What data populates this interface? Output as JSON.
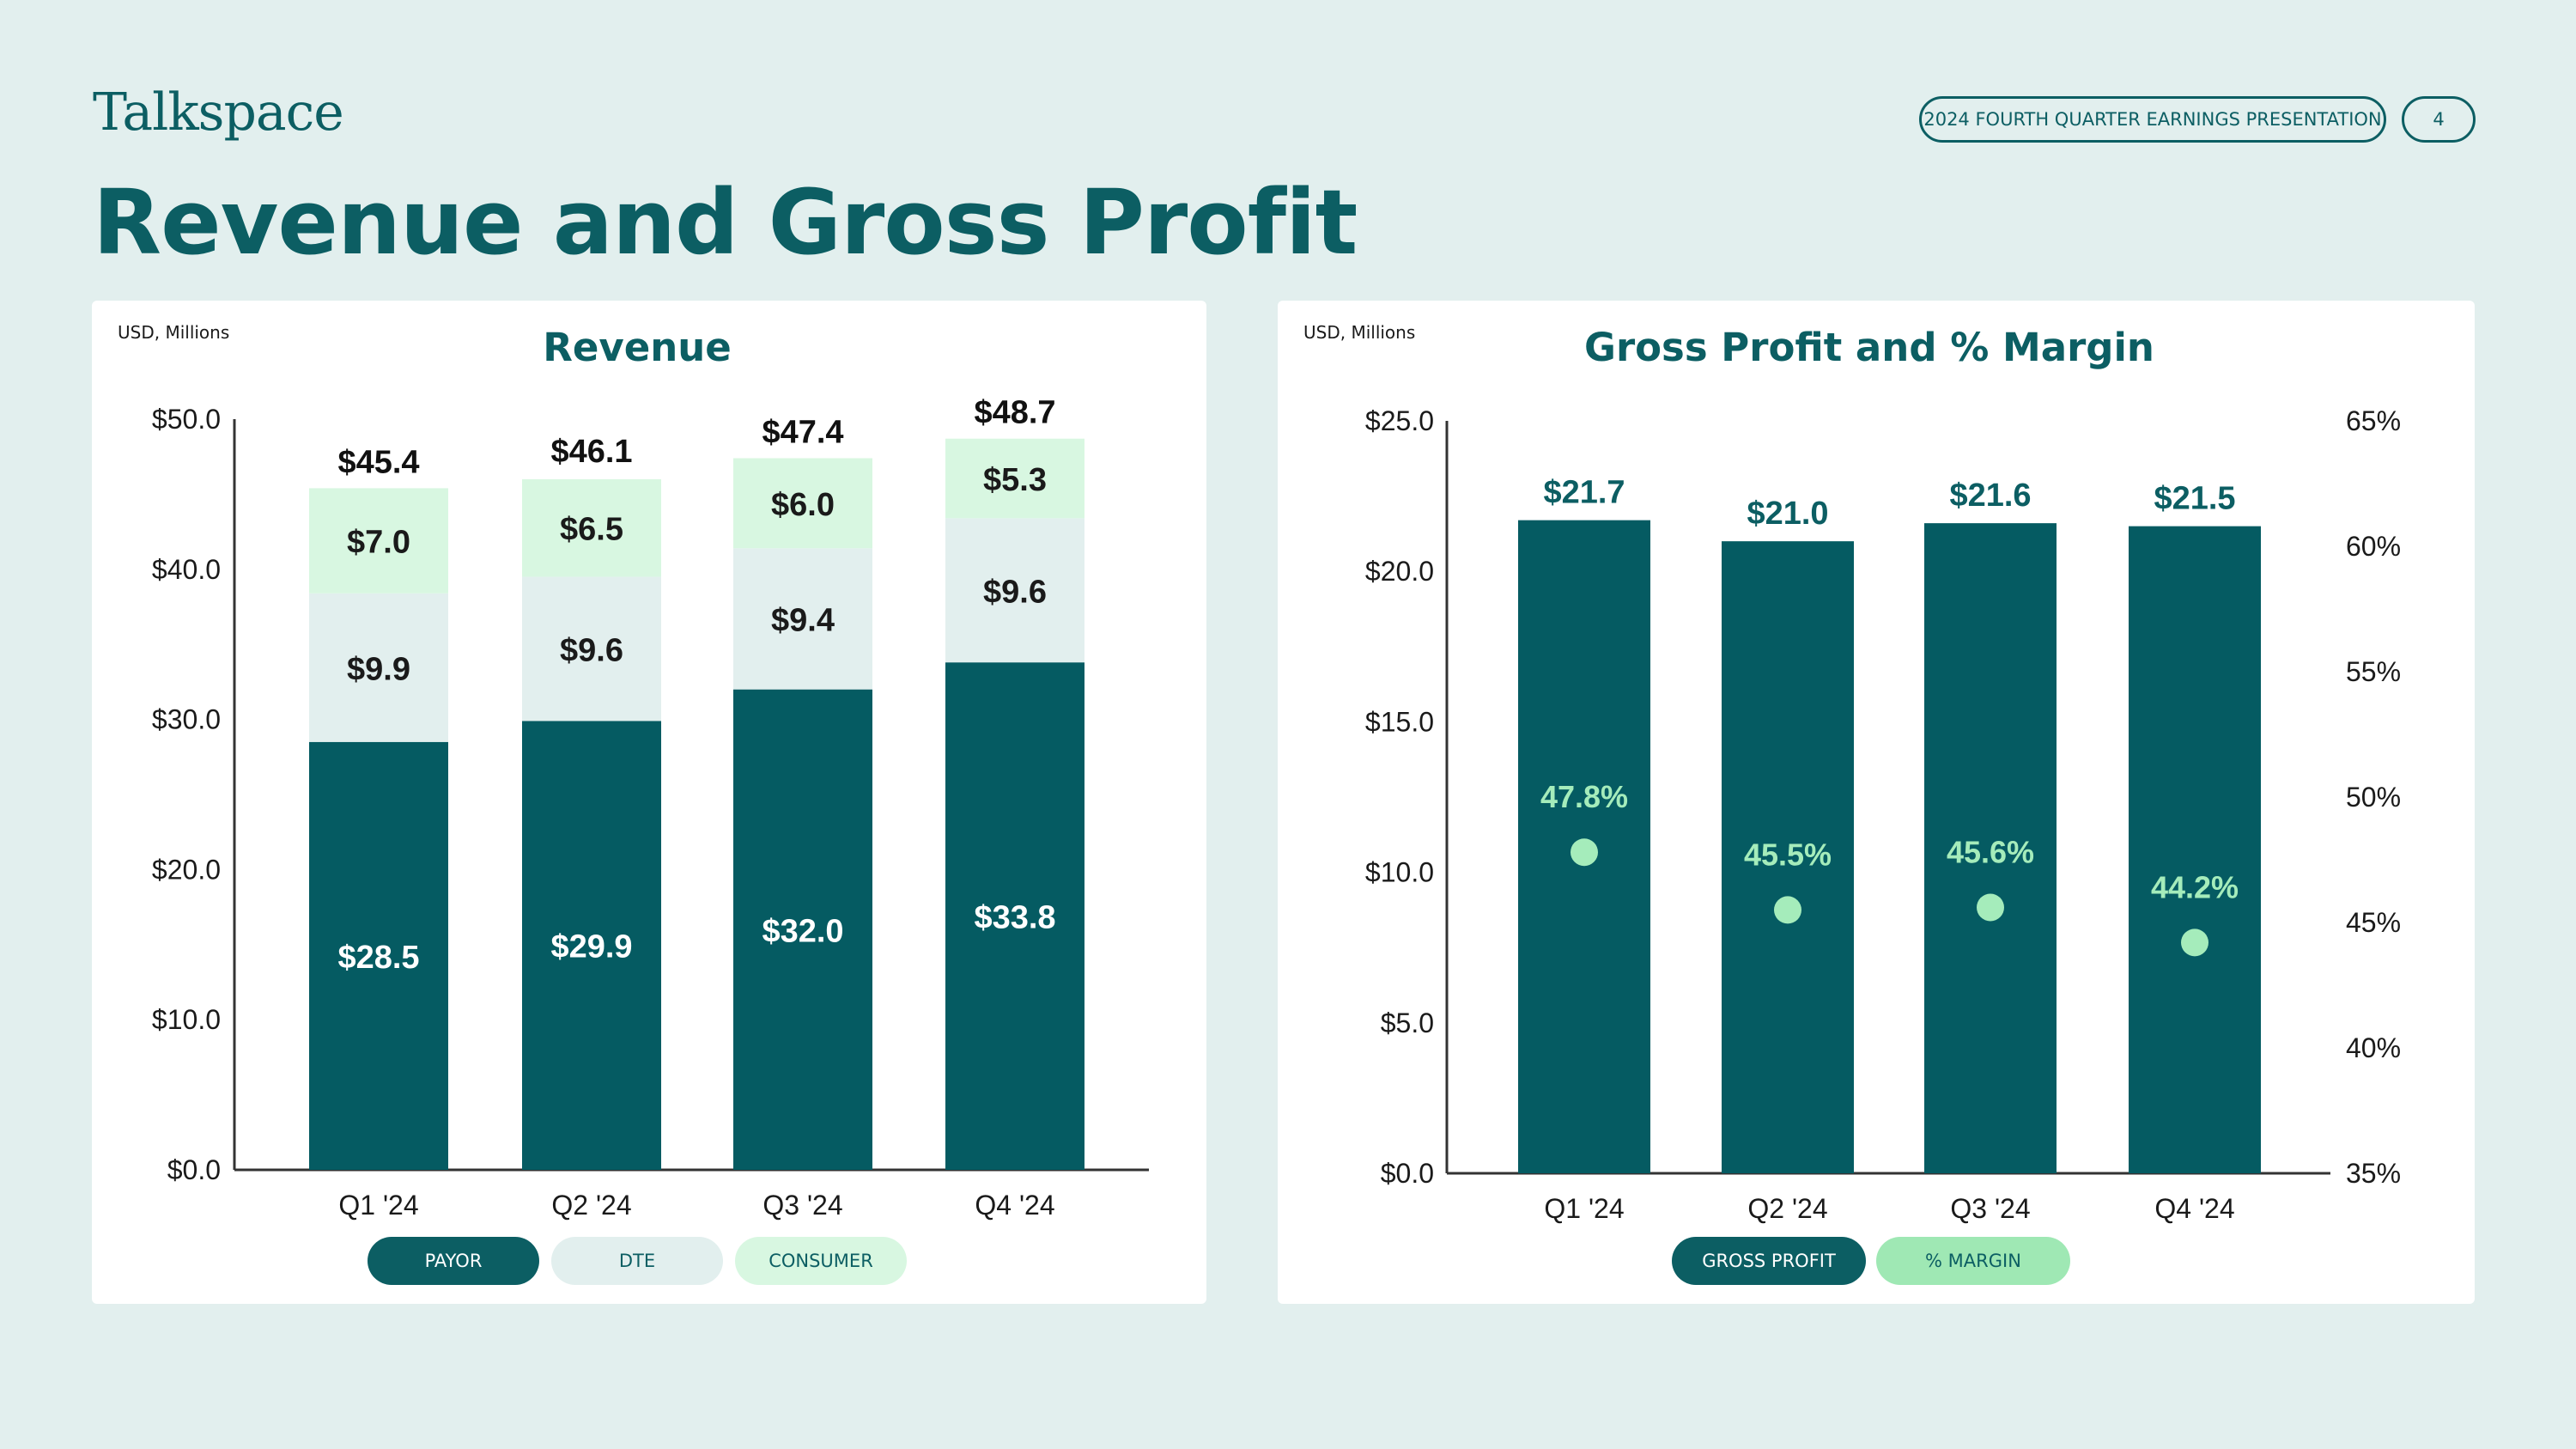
{
  "header": {
    "logo_text": "Talkspace",
    "title": "Revenue and Gross Profit",
    "presentation_label": "2024 FOURTH QUARTER EARNINGS PRESENTATION",
    "page_number": "4"
  },
  "colors": {
    "brand_teal": "#0c5e63",
    "payor": "#055b62",
    "dte": "#e2efee",
    "consumer": "#d8f7e1",
    "margin_dot": "#a5ecbb",
    "margin_text": "#a5ecbb",
    "background": "#e2efee"
  },
  "chart_data": [
    {
      "type": "bar",
      "stacked": true,
      "title": "Revenue",
      "unit_label": "USD, Millions",
      "categories": [
        "Q1 '24",
        "Q2 '24",
        "Q3 '24",
        "Q4 '24"
      ],
      "series": [
        {
          "name": "PAYOR",
          "values": [
            28.5,
            29.9,
            32.0,
            33.8
          ],
          "labels": [
            "$28.5",
            "$29.9",
            "$32.0",
            "$33.8"
          ]
        },
        {
          "name": "DTE",
          "values": [
            9.9,
            9.6,
            9.4,
            9.6
          ],
          "labels": [
            "$9.9",
            "$9.6",
            "$9.4",
            "$9.6"
          ]
        },
        {
          "name": "CONSUMER",
          "values": [
            7.0,
            6.5,
            6.0,
            5.3
          ],
          "labels": [
            "$7.0",
            "$6.5",
            "$6.0",
            "$5.3"
          ]
        }
      ],
      "totals": [
        45.4,
        46.1,
        47.4,
        48.7
      ],
      "total_labels": [
        "$45.4",
        "$46.1",
        "$47.4",
        "$48.7"
      ],
      "ylim": [
        0,
        50
      ],
      "yticks": [
        0,
        10,
        20,
        30,
        40,
        50
      ],
      "ytick_labels": [
        "$0.0",
        "$10.0",
        "$20.0",
        "$30.0",
        "$40.0",
        "$50.0"
      ],
      "legend": [
        "PAYOR",
        "DTE",
        "CONSUMER"
      ]
    },
    {
      "type": "bar",
      "title": "Gross Profit and % Margin",
      "unit_label": "USD, Millions",
      "categories": [
        "Q1 '24",
        "Q2 '24",
        "Q3 '24",
        "Q4 '24"
      ],
      "series": [
        {
          "name": "GROSS PROFIT",
          "axis": "left",
          "values": [
            21.7,
            21.0,
            21.6,
            21.5
          ],
          "labels": [
            "$21.7",
            "$21.0",
            "$21.6",
            "$21.5"
          ]
        },
        {
          "name": "% MARGIN",
          "axis": "right",
          "type": "scatter",
          "values": [
            47.8,
            45.5,
            45.6,
            44.2
          ],
          "labels": [
            "47.8%",
            "45.5%",
            "45.6%",
            "44.2%"
          ]
        }
      ],
      "ylim": [
        0,
        25
      ],
      "yticks": [
        0,
        5,
        10,
        15,
        20,
        25
      ],
      "ytick_labels": [
        "$0.0",
        "$5.0",
        "$10.0",
        "$15.0",
        "$20.0",
        "$25.0"
      ],
      "y2lim": [
        35,
        65
      ],
      "y2ticks": [
        35,
        40,
        45,
        50,
        55,
        60,
        65
      ],
      "y2tick_labels": [
        "35%",
        "40%",
        "45%",
        "50%",
        "55%",
        "60%",
        "65%"
      ],
      "legend": [
        "GROSS PROFIT",
        "% MARGIN"
      ]
    }
  ]
}
